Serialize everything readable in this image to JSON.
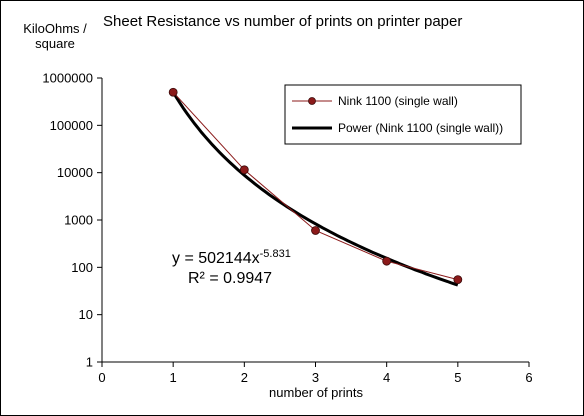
{
  "chart_data": {
    "type": "scatter",
    "title": "Sheet Resistance vs number of prints on printer paper",
    "ylabel_line1": "KiloOhms /",
    "ylabel_line2": "square",
    "xlabel": "number of prints",
    "xlim": [
      0,
      6
    ],
    "ylim": [
      1,
      1000000
    ],
    "yscale": "log",
    "grid": false,
    "legend_position": "top-right",
    "x_ticks": [
      "0",
      "1",
      "2",
      "3",
      "4",
      "5",
      "6"
    ],
    "y_ticks": [
      "1",
      "10",
      "100",
      "1000",
      "10000",
      "100000",
      "1000000"
    ],
    "series": [
      {
        "name": "Nink 1100 (single wall)",
        "type": "line-markers",
        "color": "#8b1a1a",
        "x": [
          1,
          2,
          3,
          4,
          5
        ],
        "y": [
          500000,
          11500,
          600,
          135,
          55
        ]
      },
      {
        "name": "Power (Nink 1100 (single wall))",
        "type": "trendline",
        "color": "#000000",
        "coefficient": 502144,
        "exponent": -5.831,
        "x_range": [
          1,
          5
        ]
      }
    ],
    "annotation": {
      "equation_prefix": "y = 502144x",
      "equation_exponent": "-5.831",
      "r_squared": "R² = 0.9947"
    }
  }
}
